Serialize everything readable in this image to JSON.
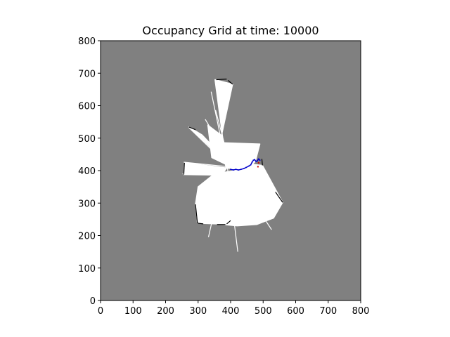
{
  "chart_data": {
    "type": "heatmap",
    "title": "Occupancy Grid at time: 10000",
    "xlabel": "",
    "ylabel": "",
    "xlim": [
      0,
      800
    ],
    "ylim": [
      0,
      800
    ],
    "x_ticks": [
      "0",
      "100",
      "200",
      "300",
      "400",
      "500",
      "600",
      "700",
      "800"
    ],
    "y_ticks": [
      "0",
      "100",
      "200",
      "300",
      "400",
      "500",
      "600",
      "700",
      "800"
    ],
    "grid": false,
    "colors": {
      "unknown": "#808080",
      "free": "#ffffff",
      "occupied": "#000000",
      "trajectory": "#0000cc",
      "marker": "#cc0000"
    },
    "free_regions": [
      [
        [
          388,
          408
        ],
        [
          352,
          680
        ],
        [
          406,
          666
        ],
        [
          372,
          508
        ],
        [
          330,
          540
        ],
        [
          342,
          440
        ],
        [
          388,
          418
        ]
      ],
      [
        [
          392,
          422
        ],
        [
          272,
          534
        ],
        [
          312,
          510
        ],
        [
          350,
          470
        ],
        [
          384,
          446
        ],
        [
          400,
          426
        ]
      ],
      [
        [
          388,
          408
        ],
        [
          258,
          424
        ],
        [
          256,
          388
        ],
        [
          372,
          386
        ]
      ],
      [
        [
          350,
          390
        ],
        [
          300,
          350
        ],
        [
          292,
          296
        ],
        [
          298,
          238
        ],
        [
          356,
          236
        ],
        [
          420,
          230
        ],
        [
          480,
          234
        ],
        [
          532,
          254
        ],
        [
          560,
          302
        ],
        [
          498,
          416
        ],
        [
          462,
          420
        ],
        [
          424,
          402
        ]
      ],
      [
        [
          372,
          486
        ],
        [
          490,
          482
        ],
        [
          476,
          428
        ],
        [
          448,
          402
        ],
        [
          386,
          408
        ]
      ]
    ],
    "free_rays": [
      [
        [
          390,
          410
        ],
        [
          422,
          150
        ]
      ],
      [
        [
          380,
          410
        ],
        [
          332,
          195
        ]
      ],
      [
        [
          380,
          408
        ],
        [
          328,
          248
        ]
      ],
      [
        [
          400,
          410
        ],
        [
          526,
          218
        ]
      ],
      [
        [
          396,
          412
        ],
        [
          272,
          532
        ]
      ],
      [
        [
          392,
          412
        ],
        [
          256,
          426
        ]
      ],
      [
        [
          392,
          410
        ],
        [
          252,
          390
        ]
      ],
      [
        [
          384,
          432
        ],
        [
          340,
          643
        ]
      ],
      [
        [
          392,
          440
        ],
        [
          322,
          558
        ]
      ],
      [
        [
          392,
          440
        ],
        [
          354,
          586
        ]
      ]
    ],
    "occupied_segments": [
      [
        [
          392,
          678
        ],
        [
          406,
          666
        ]
      ],
      [
        [
          356,
          680
        ],
        [
          388,
          682
        ]
      ],
      [
        [
          272,
          534
        ],
        [
          292,
          526
        ]
      ],
      [
        [
          258,
          424
        ],
        [
          256,
          388
        ]
      ],
      [
        [
          292,
          296
        ],
        [
          298,
          238
        ]
      ],
      [
        [
          298,
          238
        ],
        [
          316,
          236
        ]
      ],
      [
        [
          358,
          234
        ],
        [
          384,
          234
        ]
      ],
      [
        [
          388,
          236
        ],
        [
          400,
          246
        ]
      ],
      [
        [
          498,
          416
        ],
        [
          496,
          436
        ]
      ],
      [
        [
          560,
          302
        ],
        [
          538,
          334
        ]
      ]
    ],
    "trajectory": {
      "x": [
        400,
        408,
        416,
        424,
        432,
        440,
        448,
        456,
        462,
        466,
        470,
        474,
        478,
        482,
        486,
        490
      ],
      "y": [
        404,
        402,
        404,
        402,
        404,
        406,
        410,
        414,
        418,
        426,
        432,
        434,
        428,
        430,
        436,
        432
      ]
    },
    "markers": [
      {
        "x": 484,
        "y": 412
      },
      {
        "x": 486,
        "y": 424
      }
    ]
  }
}
